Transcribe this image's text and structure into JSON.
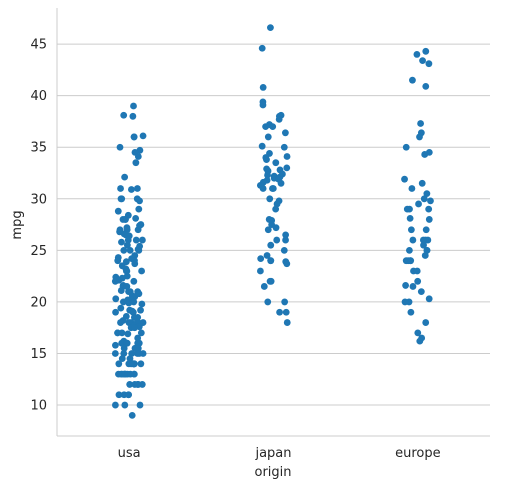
{
  "chart_data": {
    "type": "scatter",
    "style": "strip",
    "xlabel": "origin",
    "ylabel": "mpg",
    "categories": [
      "usa",
      "japan",
      "europe"
    ],
    "ylim": [
      7,
      48.5
    ],
    "yticks": [
      10,
      15,
      20,
      25,
      30,
      35,
      40,
      45
    ],
    "grid": "horizontal",
    "point_color": "#1f77b4",
    "series": [
      {
        "category": "usa",
        "values": [
          39.0,
          38.1,
          38.0,
          36.1,
          36.0,
          36.0,
          35.0,
          34.7,
          34.5,
          34.1,
          33.5,
          32.1,
          31.0,
          31.0,
          30.9,
          30.0,
          30.0,
          30.0,
          29.8,
          29.0,
          28.8,
          28.4,
          28.1,
          28.0,
          28.0,
          28.0,
          27.5,
          27.4,
          27.2,
          27.0,
          27.0,
          27.0,
          26.8,
          26.6,
          26.5,
          26.4,
          26.0,
          26.0,
          26.0,
          25.8,
          25.5,
          25.4,
          25.1,
          25.0,
          25.0,
          25.0,
          24.5,
          24.3,
          24.2,
          24.0,
          24.0,
          23.9,
          23.7,
          23.5,
          23.2,
          23.0,
          23.0,
          23.0,
          22.5,
          22.4,
          22.3,
          22.1,
          22.0,
          22.0,
          21.6,
          21.5,
          21.5,
          21.1,
          21.0,
          21.0,
          21.0,
          20.8,
          20.6,
          20.5,
          20.3,
          20.2,
          20.2,
          20.0,
          20.0,
          20.0,
          19.9,
          19.8,
          19.4,
          19.2,
          19.2,
          19.1,
          19.0,
          19.0,
          19.0,
          18.6,
          18.5,
          18.5,
          18.2,
          18.1,
          18.0,
          18.0,
          18.0,
          18.0,
          17.7,
          17.6,
          17.5,
          17.5,
          17.0,
          17.0,
          17.0,
          17.0,
          16.9,
          16.5,
          16.2,
          16.0,
          16.0,
          16.0,
          16.0,
          16.0,
          15.8,
          15.5,
          15.5,
          15.5,
          15.0,
          15.0,
          15.0,
          15.0,
          15.0,
          15.0,
          14.5,
          14.5,
          14.0,
          14.0,
          14.0,
          14.0,
          14.0,
          14.0,
          14.0,
          14.0,
          14.0,
          13.0,
          13.0,
          13.0,
          13.0,
          13.0,
          13.0,
          13.0,
          13.0,
          13.0,
          13.0,
          13.0,
          12.0,
          12.0,
          12.0,
          12.0,
          12.0,
          11.0,
          11.0,
          11.0,
          11.0,
          10.0,
          10.0,
          10.0,
          9.0
        ]
      },
      {
        "category": "japan",
        "values": [
          46.6,
          44.6,
          40.8,
          39.4,
          39.1,
          38.1,
          38.0,
          37.7,
          37.2,
          37.0,
          37.0,
          36.4,
          36.0,
          35.1,
          35.0,
          34.4,
          34.1,
          34.0,
          33.8,
          33.5,
          33.0,
          32.9,
          32.8,
          32.7,
          32.4,
          32.3,
          32.2,
          32.1,
          32.0,
          32.0,
          31.9,
          31.8,
          31.6,
          31.5,
          31.3,
          31.0,
          31.0,
          31.0,
          30.0,
          29.8,
          29.5,
          29.0,
          28.0,
          27.9,
          27.5,
          27.2,
          27.0,
          26.5,
          26.0,
          26.0,
          25.5,
          25.0,
          24.5,
          24.2,
          24.0,
          24.0,
          23.9,
          23.7,
          23.0,
          22.0,
          22.0,
          21.5,
          20.0,
          20.0,
          19.0,
          19.0,
          18.0
        ]
      },
      {
        "category": "europe",
        "values": [
          44.3,
          44.0,
          43.4,
          43.1,
          41.5,
          40.9,
          37.3,
          36.4,
          36.0,
          35.0,
          34.5,
          34.3,
          31.9,
          31.5,
          31.0,
          30.5,
          30.0,
          29.8,
          29.5,
          29.0,
          29.0,
          29.0,
          28.1,
          28.0,
          27.0,
          27.0,
          26.0,
          26.0,
          26.0,
          26.0,
          25.5,
          25.0,
          25.0,
          25.0,
          24.5,
          24.0,
          24.0,
          24.0,
          24.0,
          23.0,
          23.0,
          22.0,
          21.6,
          21.5,
          21.0,
          20.3,
          20.0,
          20.0,
          19.0,
          18.0,
          17.0,
          16.5,
          16.2
        ]
      }
    ]
  }
}
